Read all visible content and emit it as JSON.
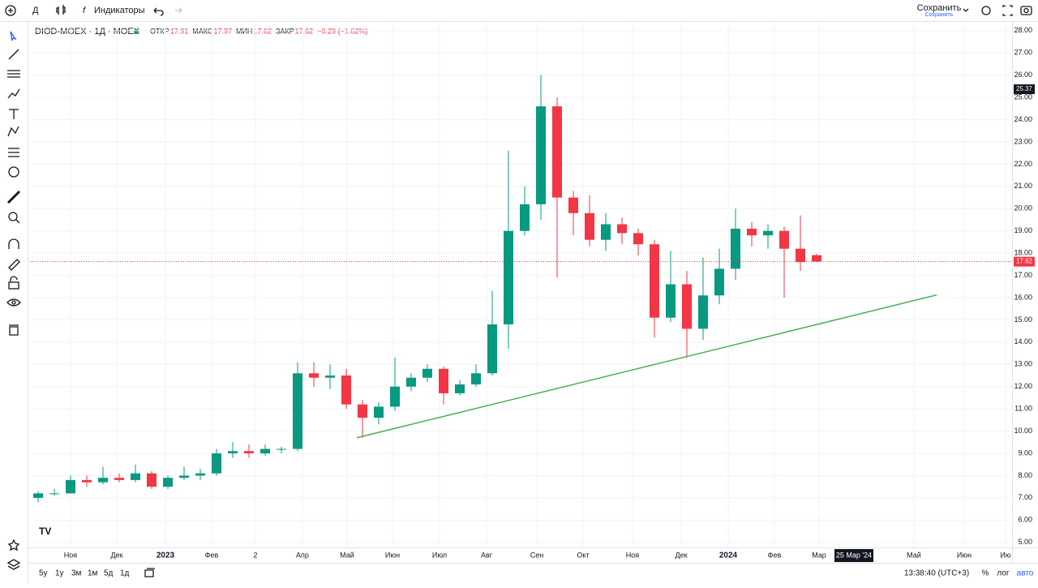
{
  "ui": {
    "interval": "Д",
    "indicators": "Индикаторы",
    "save": "Сохранить",
    "save_sub": "Сохранить",
    "ranges": [
      "5y",
      "1y",
      "3м",
      "1м",
      "5д",
      "1д"
    ],
    "clock": "13:38:40 (UTC+3)",
    "percent": "%",
    "log": "лог",
    "auto": "авто"
  },
  "chart_data": {
    "type": "candlestick",
    "title": "DIOD-MOEX · 1Д · MOEX",
    "legend": {
      "open_label": "ОТКР",
      "open": 17.91,
      "high_label": "МАКС",
      "high": 17.97,
      "low_label": "МИН",
      "low": 17.62,
      "close_label": "ЗАКР",
      "close": 17.62,
      "change": "−0.29 (−1.62%)"
    },
    "up_color": "#089981",
    "down_color": "#f23645",
    "ohlc": [
      [
        7.0,
        7.3,
        6.8,
        7.2
      ],
      [
        7.2,
        7.4,
        7.1,
        7.2
      ],
      [
        7.2,
        8.0,
        7.2,
        7.8
      ],
      [
        7.8,
        8.0,
        7.5,
        7.7
      ],
      [
        7.7,
        8.4,
        7.6,
        7.9
      ],
      [
        7.9,
        8.1,
        7.7,
        7.8
      ],
      [
        7.8,
        8.5,
        7.7,
        8.1
      ],
      [
        8.1,
        8.2,
        7.4,
        7.5
      ],
      [
        7.5,
        8.0,
        7.4,
        7.9
      ],
      [
        7.9,
        8.4,
        7.8,
        8.0
      ],
      [
        8.0,
        8.3,
        7.8,
        8.1
      ],
      [
        8.1,
        9.2,
        8.0,
        9.0
      ],
      [
        9.0,
        9.5,
        8.8,
        9.1
      ],
      [
        9.1,
        9.4,
        8.8,
        9.0
      ],
      [
        9.0,
        9.4,
        8.9,
        9.2
      ],
      [
        9.2,
        9.3,
        9.0,
        9.2
      ],
      [
        9.2,
        13.1,
        9.1,
        12.6
      ],
      [
        12.6,
        13.1,
        12.0,
        12.4
      ],
      [
        12.4,
        13.0,
        11.9,
        12.5
      ],
      [
        12.5,
        12.8,
        11.0,
        11.2
      ],
      [
        11.2,
        11.4,
        9.7,
        10.6
      ],
      [
        10.6,
        11.3,
        10.3,
        11.1
      ],
      [
        11.1,
        13.3,
        10.9,
        12.0
      ],
      [
        12.0,
        12.6,
        11.8,
        12.4
      ],
      [
        12.4,
        13.0,
        12.2,
        12.8
      ],
      [
        12.8,
        12.9,
        11.2,
        11.7
      ],
      [
        11.7,
        12.3,
        11.6,
        12.1
      ],
      [
        12.1,
        13.0,
        12.0,
        12.6
      ],
      [
        12.6,
        16.3,
        12.5,
        14.8
      ],
      [
        14.8,
        22.6,
        13.7,
        19.0
      ],
      [
        19.0,
        21.0,
        18.8,
        20.2
      ],
      [
        20.2,
        26.0,
        19.5,
        24.6
      ],
      [
        24.6,
        25.0,
        16.9,
        20.5
      ],
      [
        20.5,
        20.8,
        18.8,
        19.8
      ],
      [
        19.8,
        20.6,
        18.3,
        18.6
      ],
      [
        18.6,
        19.8,
        18.1,
        19.3
      ],
      [
        19.3,
        19.6,
        18.4,
        18.9
      ],
      [
        18.9,
        19.1,
        17.9,
        18.4
      ],
      [
        18.4,
        18.6,
        14.2,
        15.1
      ],
      [
        15.1,
        18.1,
        14.9,
        16.6
      ],
      [
        16.6,
        17.2,
        13.3,
        14.6
      ],
      [
        14.6,
        17.8,
        14.1,
        16.1
      ],
      [
        16.1,
        18.2,
        15.7,
        17.3
      ],
      [
        17.3,
        20.0,
        16.8,
        19.1
      ],
      [
        19.1,
        19.4,
        18.3,
        18.8
      ],
      [
        18.8,
        19.3,
        18.2,
        19.0
      ],
      [
        19.0,
        19.2,
        16.0,
        18.2
      ],
      [
        18.2,
        19.7,
        17.2,
        17.6
      ],
      [
        17.91,
        17.97,
        17.62,
        17.62
      ]
    ],
    "trendline": {
      "x": [
        20.15,
        55.9
      ],
      "y": [
        9.7,
        16.12
      ],
      "color": "#4caf50"
    },
    "last_price": {
      "value": 17.62,
      "label": "17.62",
      "color": "#f23645"
    },
    "crosshair": {
      "price": {
        "value": 25.37,
        "label": "25.37"
      },
      "date": {
        "value": 50.8,
        "label": "25 Мар '24"
      }
    },
    "xlim": [
      0,
      60.55
    ],
    "xticks": [
      {
        "value": 2.5,
        "label": "Ноя"
      },
      {
        "value": 5.35,
        "label": "Дек"
      },
      {
        "value": 8.35,
        "label": "2023"
      },
      {
        "value": 11.2,
        "label": "Фев"
      },
      {
        "value": 13.9,
        "label": "2"
      },
      {
        "value": 16.8,
        "label": "Апр"
      },
      {
        "value": 19.55,
        "label": "Май"
      },
      {
        "value": 22.35,
        "label": "Июн"
      },
      {
        "value": 25.25,
        "label": "Июл"
      },
      {
        "value": 28.15,
        "label": "Авг"
      },
      {
        "value": 31.25,
        "label": "Сен"
      },
      {
        "value": 34.1,
        "label": "Окт"
      },
      {
        "value": 37.15,
        "label": "Ноя"
      },
      {
        "value": 40.15,
        "label": "Дек"
      },
      {
        "value": 43.05,
        "label": "2024"
      },
      {
        "value": 45.9,
        "label": "Фев"
      },
      {
        "value": 48.65,
        "label": "Мар"
      },
      {
        "value": 54.5,
        "label": "Май"
      },
      {
        "value": 57.6,
        "label": "Июн"
      },
      {
        "value": 60.15,
        "label": "Ию"
      }
    ],
    "ylim": [
      4.77,
      28.36
    ],
    "yticks": [
      {
        "value": 5,
        "label": "5.00"
      },
      {
        "value": 6,
        "label": "6.00"
      },
      {
        "value": 7,
        "label": "7.00"
      },
      {
        "value": 8,
        "label": "8.00"
      },
      {
        "value": 9,
        "label": "9.00"
      },
      {
        "value": 10,
        "label": "10.00"
      },
      {
        "value": 11,
        "label": "11.00"
      },
      {
        "value": 12,
        "label": "12.00"
      },
      {
        "value": 13,
        "label": "13.00"
      },
      {
        "value": 14,
        "label": "14.00"
      },
      {
        "value": 15,
        "label": "15.00"
      },
      {
        "value": 16,
        "label": "16.00"
      },
      {
        "value": 17,
        "label": "17.00"
      },
      {
        "value": 18,
        "label": "18.00"
      },
      {
        "value": 19,
        "label": "19.00"
      },
      {
        "value": 20,
        "label": "20.00"
      },
      {
        "value": 21,
        "label": "21.00"
      },
      {
        "value": 22,
        "label": "22.00"
      },
      {
        "value": 23,
        "label": "23.00"
      },
      {
        "value": 24,
        "label": "24.00"
      },
      {
        "value": 25,
        "label": "25.00"
      },
      {
        "value": 26,
        "label": "26.00"
      },
      {
        "value": 27,
        "label": "27.00"
      },
      {
        "value": 28,
        "label": "28.00"
      }
    ],
    "grid": true
  }
}
